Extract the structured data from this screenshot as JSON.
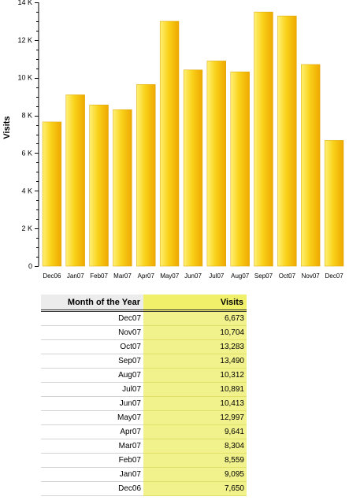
{
  "chart_data": {
    "type": "bar",
    "ylabel": "Visits",
    "xlabel": "",
    "categories": [
      "Dec06",
      "Jan07",
      "Feb07",
      "Mar07",
      "Apr07",
      "May07",
      "Jun07",
      "Jul07",
      "Aug07",
      "Sep07",
      "Oct07",
      "Nov07",
      "Dec07"
    ],
    "values": [
      7650,
      9095,
      8559,
      8304,
      9641,
      12997,
      10413,
      10891,
      10312,
      13490,
      13283,
      10704,
      6673
    ],
    "ylim": [
      0,
      14000
    ],
    "yticks": [
      0,
      2000,
      4000,
      6000,
      8000,
      10000,
      12000,
      14000
    ],
    "ytick_labels": [
      "0",
      "2 K",
      "4 K",
      "6 K",
      "8 K",
      "10 K",
      "12 K",
      "14 K"
    ],
    "grid": false,
    "bar_color": "#f7c600"
  },
  "table": {
    "headers": {
      "month": "Month of the Year",
      "visits": "Visits"
    },
    "rows": [
      {
        "month": "Dec07",
        "visits": "6,673"
      },
      {
        "month": "Nov07",
        "visits": "10,704"
      },
      {
        "month": "Oct07",
        "visits": "13,283"
      },
      {
        "month": "Sep07",
        "visits": "13,490"
      },
      {
        "month": "Aug07",
        "visits": "10,312"
      },
      {
        "month": "Jul07",
        "visits": "10,891"
      },
      {
        "month": "Jun07",
        "visits": "10,413"
      },
      {
        "month": "May07",
        "visits": "12,997"
      },
      {
        "month": "Apr07",
        "visits": "9,641"
      },
      {
        "month": "Mar07",
        "visits": "8,304"
      },
      {
        "month": "Feb07",
        "visits": "8,559"
      },
      {
        "month": "Jan07",
        "visits": "9,095"
      },
      {
        "month": "Dec06",
        "visits": "7,650"
      }
    ]
  }
}
